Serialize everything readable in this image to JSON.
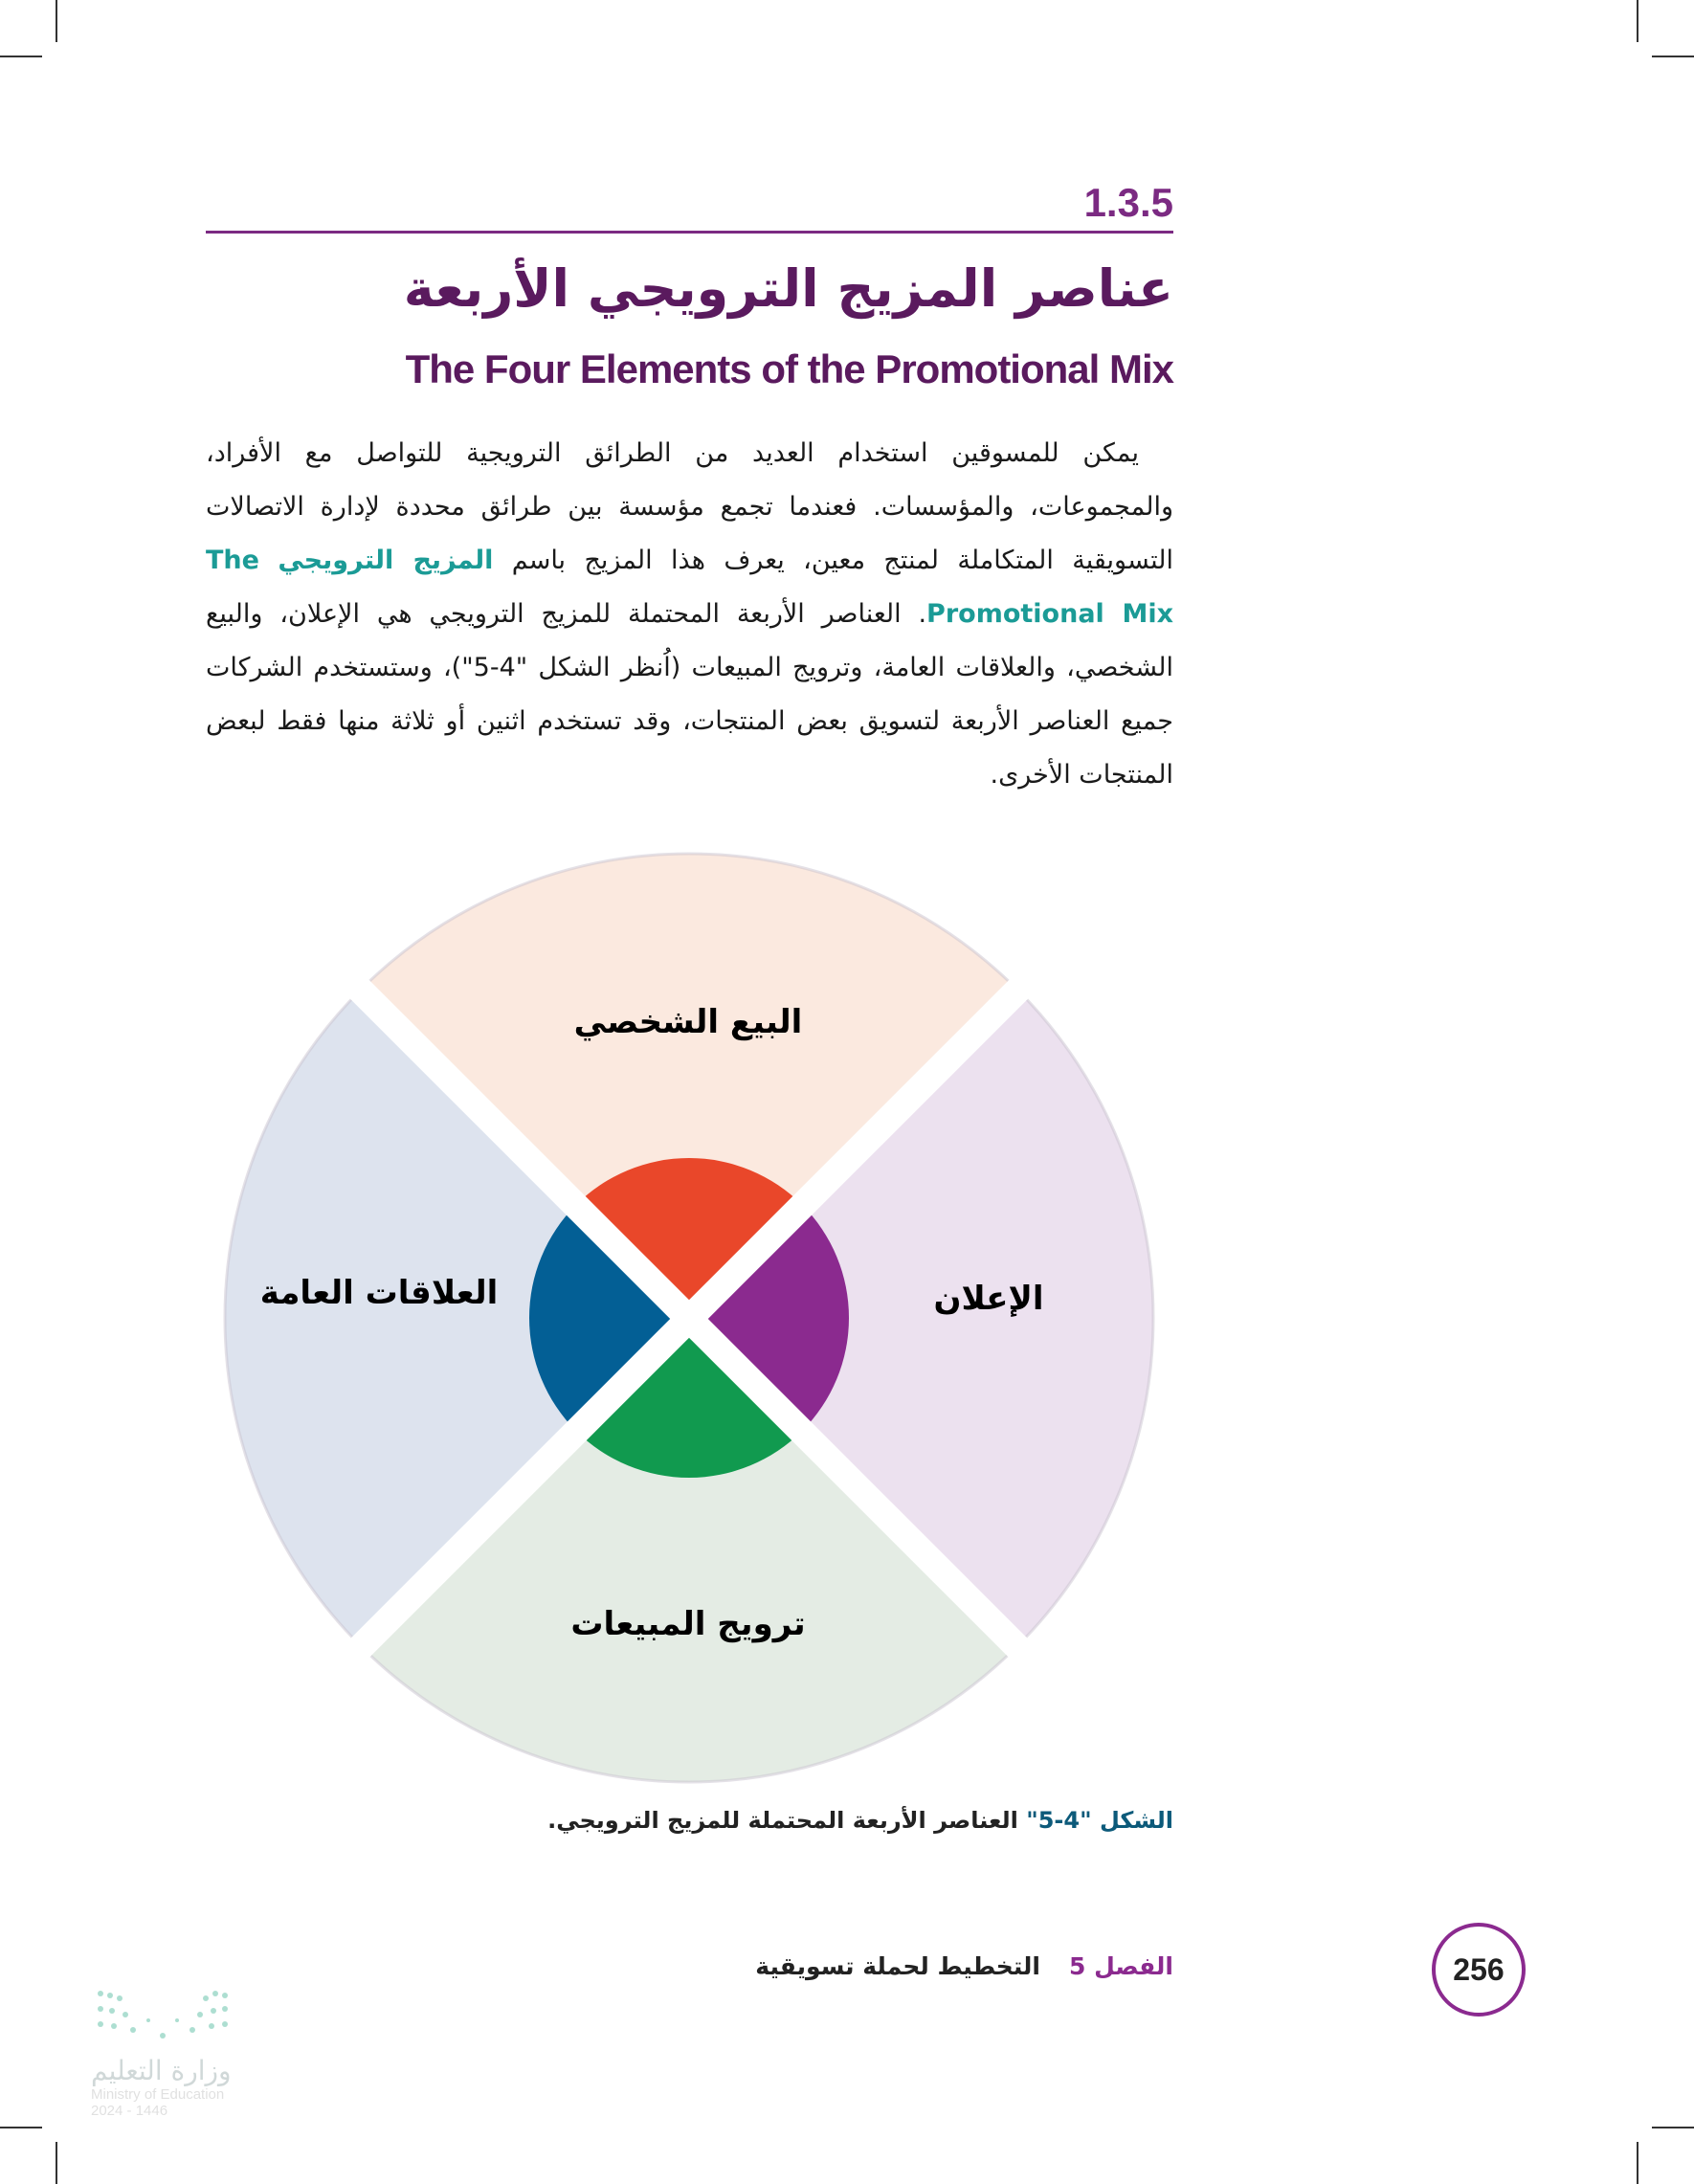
{
  "section": {
    "number": "1.3.5",
    "title_ar": "عناصر المزيج الترويجي الأربعة",
    "title_en": "The Four Elements of the Promotional Mix"
  },
  "paragraph": {
    "part1": "يمكن للمسوقين استخدام العديد من الطرائق الترويجية للتواصل مع الأفراد، والمجموعات، والمؤسسات. فعندما تجمع مؤسسة بين طرائق محددة لإدارة الاتصالات التسويقية المتكاملة لمنتج معين، يعرف هذا المزيج باسم",
    "term_ar": "المزيج الترويجي",
    "term_en": "The Promotional Mix",
    "part2": ". العناصر الأربعة المحتملة للمزيج الترويجي هي الإعلان، والبيع الشخصي، والعلاقات العامة، وترويج المبيعات (اُنظر الشكل \"4-5\")، وستستخدم الشركات جميع العناصر الأربعة لتسويق بعض المنتجات، وقد تستخدم اثنين أو ثلاثة منها فقط لبعض المنتجات الأخرى."
  },
  "diagram": {
    "segments": [
      {
        "label": "البيع الشخصي",
        "outer_color": "#fbe9df",
        "inner_color": "#e9472a",
        "text_color": "#e9472a"
      },
      {
        "label": "الإعلان",
        "outer_color": "#ece1ef",
        "inner_color": "#8b2a8f",
        "text_color": "#8b2a8f"
      },
      {
        "label": "ترويج المبيعات",
        "outer_color": "#e4ece4",
        "inner_color": "#119a4f",
        "text_color": "#177d80"
      },
      {
        "label": "العلاقات العامة",
        "outer_color": "#dde3ee",
        "inner_color": "#035f95",
        "text_color": "#0b5a94"
      }
    ]
  },
  "caption": {
    "figure": "الشكل \"4-5\"",
    "text": "العناصر الأربعة المحتملة للمزيج الترويجي."
  },
  "footer": {
    "chapter": "الفصل 5",
    "chapter_title": "التخطيط لحملة تسويقية",
    "page": "256"
  },
  "logo": {
    "ar": "وزارة التعليم",
    "en": "Ministry of Education",
    "year": "2024 - 1446"
  }
}
